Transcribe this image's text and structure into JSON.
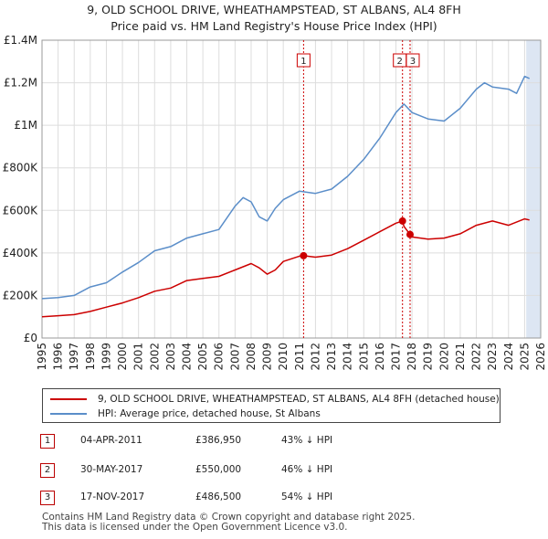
{
  "title": "9, OLD SCHOOL DRIVE, WHEATHAMPSTEAD, ST ALBANS, AL4 8FH",
  "subtitle": "Price paid vs. HM Land Registry's House Price Index (HPI)",
  "colors": {
    "property": "#cc0000",
    "hpi": "#5b8ec9",
    "band": "#dde6f3",
    "grid": "#dddddd",
    "marker_line": "#cc0000"
  },
  "legend": {
    "property_label": "9, OLD SCHOOL DRIVE, WHEATHAMPSTEAD, ST ALBANS, AL4 8FH (detached house)",
    "hpi_label": "HPI: Average price, detached house, St Albans"
  },
  "transactions": [
    {
      "num": "1",
      "date": "04-APR-2011",
      "price": "£386,950",
      "hpi": "43% ↓ HPI"
    },
    {
      "num": "2",
      "date": "30-MAY-2017",
      "price": "£550,000",
      "hpi": "46% ↓ HPI"
    },
    {
      "num": "3",
      "date": "17-NOV-2017",
      "price": "£486,500",
      "hpi": "54% ↓ HPI"
    }
  ],
  "footer": {
    "line1": "Contains HM Land Registry data © Crown copyright and database right 2025.",
    "line2": "This data is licensed under the Open Government Licence v3.0."
  },
  "chart_data": {
    "type": "line",
    "title": "9, OLD SCHOOL DRIVE, WHEATHAMPSTEAD, ST ALBANS, AL4 8FH",
    "subtitle": "Price paid vs. HM Land Registry's House Price Index (HPI)",
    "xlim": [
      1995,
      2026
    ],
    "ylim": [
      0,
      1400000
    ],
    "x_ticks": [
      "1995",
      "1996",
      "1997",
      "1998",
      "1999",
      "2000",
      "2001",
      "2002",
      "2003",
      "2004",
      "2005",
      "2006",
      "2007",
      "2008",
      "2009",
      "2010",
      "2011",
      "2012",
      "2013",
      "2014",
      "2015",
      "2016",
      "2017",
      "2018",
      "2019",
      "2020",
      "2021",
      "2022",
      "2023",
      "2024",
      "2025",
      "2026"
    ],
    "y_ticks": [
      {
        "value": 0,
        "label": "£0"
      },
      {
        "value": 200000,
        "label": "£200K"
      },
      {
        "value": 400000,
        "label": "£400K"
      },
      {
        "value": 600000,
        "label": "£600K"
      },
      {
        "value": 800000,
        "label": "£800K"
      },
      {
        "value": 1000000,
        "label": "£1M"
      },
      {
        "value": 1200000,
        "label": "£1.2M"
      },
      {
        "value": 1400000,
        "label": "£1.4M"
      }
    ],
    "grid": true,
    "future_band_from": 2025.1,
    "series": [
      {
        "name": "HPI: Average price, detached house, St Albans",
        "color": "#5b8ec9",
        "x": [
          1995,
          1996,
          1997,
          1998,
          1999,
          2000,
          2001,
          2002,
          2003,
          2004,
          2005,
          2006,
          2007,
          2007.5,
          2008,
          2008.5,
          2009,
          2009.5,
          2010,
          2011,
          2012,
          2013,
          2014,
          2015,
          2016,
          2017,
          2017.5,
          2018,
          2019,
          2020,
          2021,
          2022,
          2022.5,
          2023,
          2024,
          2024.5,
          2025,
          2025.3
        ],
        "y": [
          185000,
          190000,
          200000,
          240000,
          260000,
          310000,
          355000,
          410000,
          430000,
          470000,
          490000,
          510000,
          620000,
          660000,
          640000,
          570000,
          550000,
          610000,
          650000,
          690000,
          680000,
          700000,
          760000,
          840000,
          940000,
          1060000,
          1100000,
          1060000,
          1030000,
          1020000,
          1080000,
          1170000,
          1200000,
          1180000,
          1170000,
          1150000,
          1230000,
          1220000
        ]
      },
      {
        "name": "9, OLD SCHOOL DRIVE, WHEATHAMPSTEAD, ST ALBANS, AL4 8FH (detached house)",
        "color": "#cc0000",
        "x": [
          1995,
          1996,
          1997,
          1998,
          1999,
          2000,
          2001,
          2002,
          2003,
          2004,
          2005,
          2006,
          2007,
          2008,
          2008.5,
          2009,
          2009.5,
          2010,
          2011,
          2011.26,
          2012,
          2013,
          2014,
          2015,
          2016,
          2017,
          2017.41,
          2017.5,
          2017.88,
          2018,
          2019,
          2020,
          2021,
          2022,
          2023,
          2024,
          2025,
          2025.3
        ],
        "y": [
          100000,
          105000,
          110000,
          125000,
          145000,
          165000,
          190000,
          220000,
          235000,
          270000,
          280000,
          290000,
          320000,
          350000,
          330000,
          300000,
          320000,
          360000,
          385000,
          386950,
          380000,
          390000,
          420000,
          460000,
          500000,
          540000,
          550000,
          525000,
          486500,
          475000,
          465000,
          470000,
          490000,
          530000,
          550000,
          530000,
          560000,
          555000
        ]
      }
    ],
    "annotations": [
      {
        "label": "1",
        "x": 2011.26,
        "y": 386950
      },
      {
        "label": "2",
        "x": 2017.41,
        "y": 550000
      },
      {
        "label": "3",
        "x": 2017.88,
        "y": 486500
      }
    ]
  }
}
